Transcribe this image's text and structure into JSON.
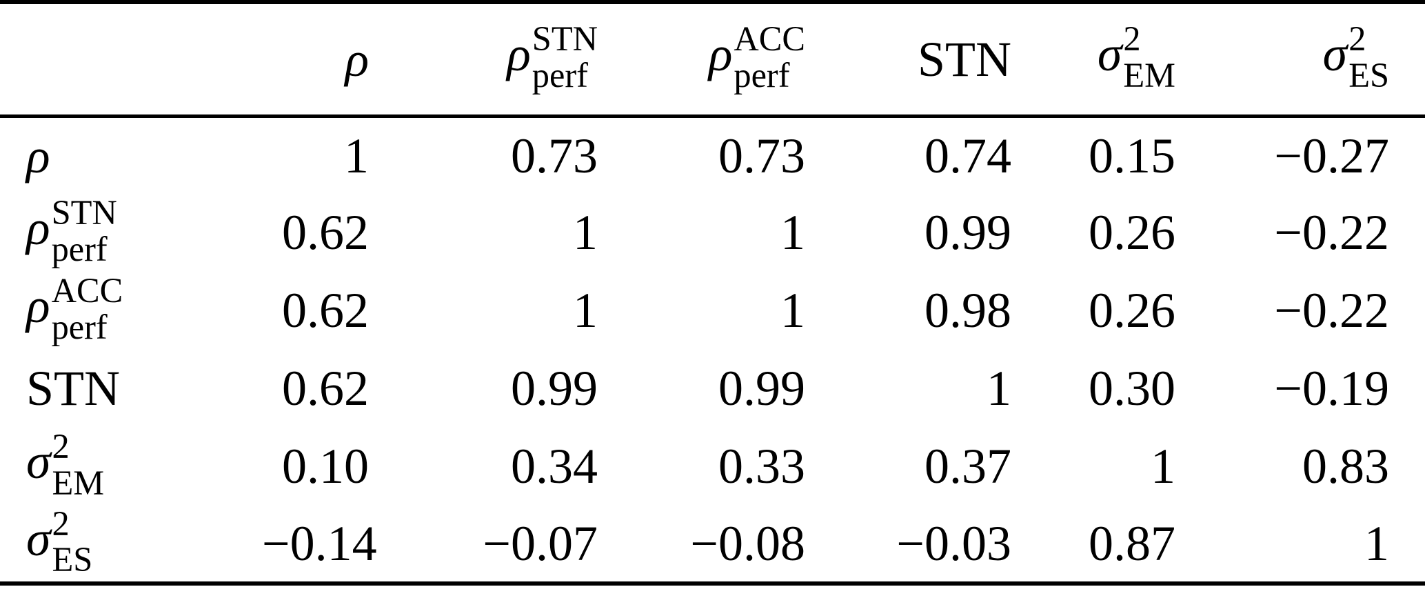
{
  "document": {
    "kind": "correlation-matrix-table",
    "colors": {
      "rule": "#000000",
      "background": "#ffffff",
      "text": "#000000"
    }
  },
  "table": {
    "corner_label": "",
    "headers": [
      {
        "base": "ρ",
        "italic": true
      },
      {
        "base": "ρ",
        "italic": true,
        "sup": "STN",
        "sub": "perf"
      },
      {
        "base": "ρ",
        "italic": true,
        "sup": "ACC",
        "sub": "perf"
      },
      {
        "base": "STN",
        "italic": false
      },
      {
        "base": "σ",
        "italic": true,
        "sup": "2",
        "sub": "EM"
      },
      {
        "base": "σ",
        "italic": true,
        "sup": "2",
        "sub": "ES"
      }
    ],
    "rows": [
      {
        "label": {
          "base": "ρ",
          "italic": true
        },
        "values": [
          "1",
          "0.73",
          "0.73",
          "0.74",
          "0.15",
          "−0.27"
        ]
      },
      {
        "label": {
          "base": "ρ",
          "italic": true,
          "sup": "STN",
          "sub": "perf"
        },
        "values": [
          "0.62",
          "1",
          "1",
          "0.99",
          "0.26",
          "−0.22"
        ]
      },
      {
        "label": {
          "base": "ρ",
          "italic": true,
          "sup": "ACC",
          "sub": "perf"
        },
        "values": [
          "0.62",
          "1",
          "1",
          "0.98",
          "0.26",
          "−0.22"
        ]
      },
      {
        "label": {
          "base": "STN",
          "italic": false
        },
        "values": [
          "0.62",
          "0.99",
          "0.99",
          "1",
          "0.30",
          "−0.19"
        ]
      },
      {
        "label": {
          "base": "σ",
          "italic": true,
          "sup": "2",
          "sub": "EM"
        },
        "values": [
          "0.10",
          "0.34",
          "0.33",
          "0.37",
          "1",
          "0.83"
        ]
      },
      {
        "label": {
          "base": "σ",
          "italic": true,
          "sup": "2",
          "sub": "ES"
        },
        "values": [
          "−0.14",
          "−0.07",
          "−0.08",
          "−0.03",
          "0.87",
          "1"
        ]
      }
    ]
  }
}
